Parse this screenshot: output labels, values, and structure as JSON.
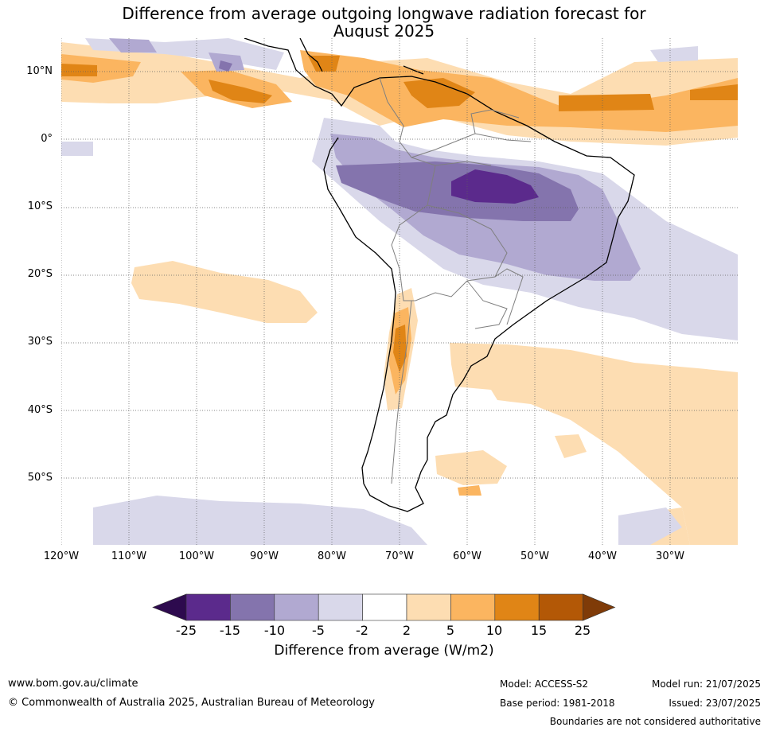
{
  "title": {
    "line1": "Difference from average outgoing longwave radiation forecast for",
    "line2": "August 2025"
  },
  "map": {
    "lat_labels": [
      "10°N",
      "0°",
      "10°S",
      "20°S",
      "30°S",
      "40°S",
      "50°S"
    ],
    "lon_labels": [
      "120°W",
      "110°W",
      "100°W",
      "90°W",
      "80°W",
      "70°W",
      "60°W",
      "50°W",
      "40°W",
      "30°W"
    ]
  },
  "colorbar": {
    "ticks": [
      "-25",
      "-15",
      "-10",
      "-5",
      "-2",
      "2",
      "5",
      "10",
      "15",
      "25"
    ],
    "colors": [
      "#2d0a4e",
      "#5b2a8c",
      "#8474ad",
      "#b1a9d1",
      "#d9d8ea",
      "#ffffff",
      "#fdddb2",
      "#fbb560",
      "#e08516",
      "#b35806",
      "#7f3b08"
    ],
    "label": "Difference from average (W/m2)"
  },
  "footer": {
    "website": "www.bom.gov.au/climate",
    "copyright": "© Commonwealth of Australia 2025, Australian Bureau of Meteorology",
    "model": "Model: ACCESS-S2",
    "base_period": "Base period: 1981-2018",
    "model_run": "Model run: 21/07/2025",
    "issued": "Issued: 23/07/2025",
    "disclaimer": "Boundaries are not considered authoritative"
  }
}
